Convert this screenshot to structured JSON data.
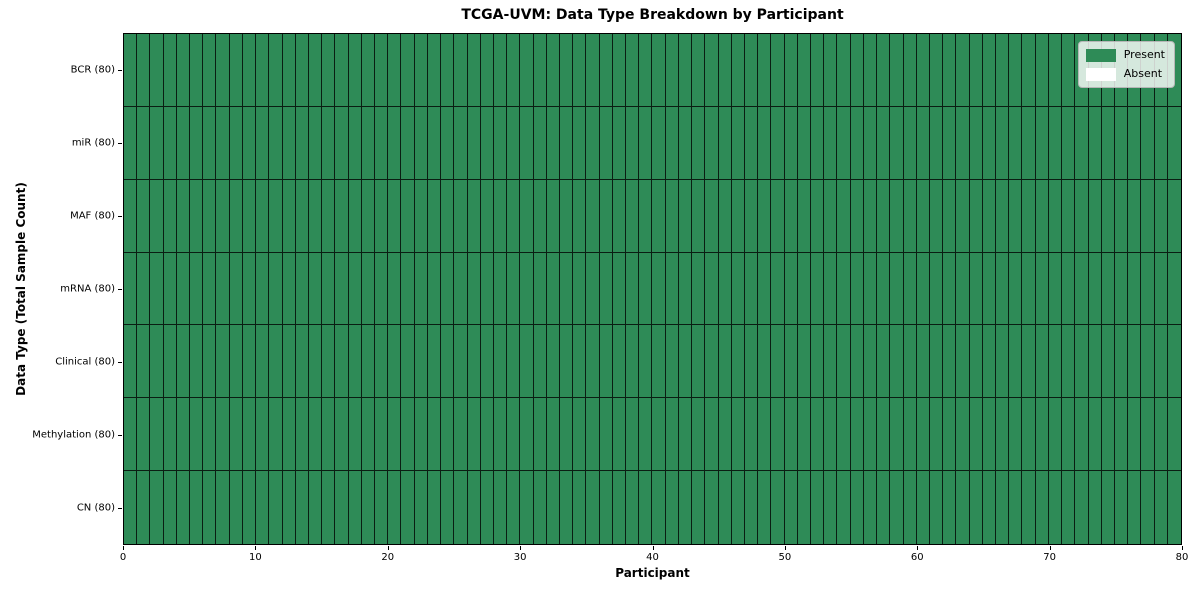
{
  "chart_data": {
    "type": "heatmap",
    "title": "TCGA-UVM: Data Type Breakdown by Participant",
    "xlabel": "Participant",
    "ylabel": "Data Type (Total Sample Count)",
    "xlim": [
      0,
      80
    ],
    "x_ticks": [
      0,
      10,
      20,
      30,
      40,
      50,
      60,
      70,
      80
    ],
    "n_participants": 80,
    "grid": true,
    "rows": [
      {
        "label": "BCR (80)",
        "name": "BCR",
        "total_samples": 80,
        "present_count": 80
      },
      {
        "label": "miR (80)",
        "name": "miR",
        "total_samples": 80,
        "present_count": 80
      },
      {
        "label": "MAF (80)",
        "name": "MAF",
        "total_samples": 80,
        "present_count": 80
      },
      {
        "label": "mRNA (80)",
        "name": "mRNA",
        "total_samples": 80,
        "present_count": 80
      },
      {
        "label": "Clinical (80)",
        "name": "Clinical",
        "total_samples": 80,
        "present_count": 80
      },
      {
        "label": "Methylation (80)",
        "name": "Methylation",
        "total_samples": 80,
        "present_count": 80
      },
      {
        "label": "CN (80)",
        "name": "CN",
        "total_samples": 80,
        "present_count": 80
      }
    ],
    "legend": {
      "position": "upper right",
      "entries": [
        {
          "label": "Present",
          "color": "#2e8b57"
        },
        {
          "label": "Absent",
          "color": "#ffffff"
        }
      ]
    },
    "colors": {
      "present": "#2e8b57",
      "absent": "#ffffff",
      "cell_edge": "#000000",
      "background": "#ffffff"
    }
  }
}
